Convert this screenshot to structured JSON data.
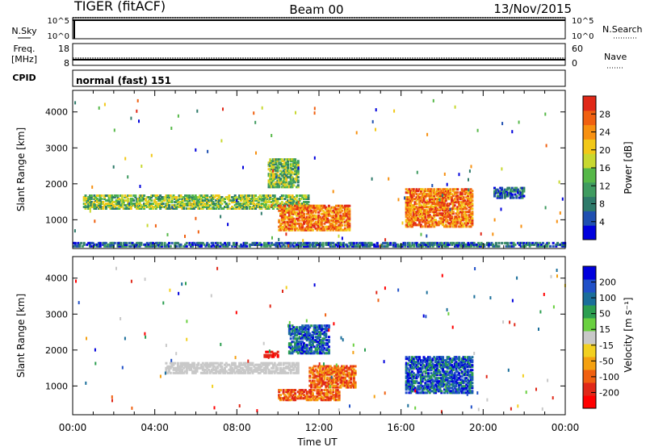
{
  "header": {
    "radar": "TIGER (fitACF)",
    "beam": "Beam 00",
    "date": "13/Nov/2015"
  },
  "top_panels": {
    "nsky": {
      "label": "N.Sky",
      "ticks": [
        "10^5",
        "10^0"
      ]
    },
    "nsearch": {
      "label": "N.Search",
      "ticks": [
        "10^5",
        "10^0"
      ]
    },
    "freq": {
      "label_line1": "Freq.",
      "label_line2": "[MHz]",
      "ticks": [
        "18",
        "8"
      ]
    },
    "nave": {
      "label": "Nave",
      "ticks": [
        "60",
        "0"
      ]
    },
    "cpid": {
      "label": "CPID",
      "mode_text": "normal (fast) 151"
    }
  },
  "colors": {
    "power_scale": [
      "#0000dd",
      "#1f4fb0",
      "#2e7a6a",
      "#3f9b60",
      "#56b848",
      "#c8d830",
      "#f2c818",
      "#f79010",
      "#f06010",
      "#e02818"
    ],
    "velocity_scale": [
      "#0000dd",
      "#2050c8",
      "#1a6e9a",
      "#2c9e50",
      "#6ad040",
      "#c8c8c8",
      "#f2d020",
      "#f4a010",
      "#f06010",
      "#e02818",
      "#ff0000"
    ]
  },
  "chart_data": [
    {
      "type": "heatmap",
      "name": "power",
      "ylabel": "Slant Range [km]",
      "yticks": [
        "4000",
        "3000",
        "2000",
        "1000"
      ],
      "ylim": [
        200,
        4600
      ],
      "xlim": [
        "00:00",
        "24:00"
      ],
      "colorbar": {
        "label": "Power [dB]",
        "ticks": [
          "28",
          "24",
          "20",
          "16",
          "12",
          "8",
          "4"
        ],
        "range": [
          0,
          32
        ]
      },
      "regions": [
        {
          "t_start": 0.5,
          "t_end": 11.5,
          "r_start": 1300,
          "r_end": 1700,
          "level": "mid"
        },
        {
          "t_start": 9.5,
          "t_end": 11.0,
          "r_start": 1900,
          "r_end": 2700,
          "level": "mid"
        },
        {
          "t_start": 10.0,
          "t_end": 13.5,
          "r_start": 700,
          "r_end": 1400,
          "level": "high"
        },
        {
          "t_start": 16.2,
          "t_end": 19.5,
          "r_start": 800,
          "r_end": 1900,
          "level": "high"
        },
        {
          "t_start": 20.5,
          "t_end": 22.0,
          "r_start": 1600,
          "r_end": 1900,
          "level": "low"
        },
        {
          "t_start": 0.0,
          "t_end": 24.0,
          "r_start": 250,
          "r_end": 400,
          "level": "low"
        }
      ]
    },
    {
      "type": "heatmap",
      "name": "velocity",
      "ylabel": "Slant Range [km]",
      "yticks": [
        "4000",
        "3000",
        "2000",
        "1000"
      ],
      "ylim": [
        200,
        4600
      ],
      "xlim": [
        "00:00",
        "24:00"
      ],
      "xticks": [
        "00:00",
        "04:00",
        "08:00",
        "12:00",
        "16:00",
        "20:00",
        "00:00"
      ],
      "xlabel": "Time UT",
      "colorbar": {
        "label": "Velocity [m s⁻¹]",
        "ticks": [
          "200",
          "100",
          "50",
          "15",
          "-15",
          "-50",
          "-100",
          "-200"
        ],
        "range": [
          -250,
          250
        ]
      },
      "regions": [
        {
          "t_start": 4.5,
          "t_end": 11.0,
          "r_start": 1350,
          "r_end": 1650,
          "level": "zero"
        },
        {
          "t_start": 11.5,
          "t_end": 13.8,
          "r_start": 950,
          "r_end": 1600,
          "level": "neg"
        },
        {
          "t_start": 10.5,
          "t_end": 12.5,
          "r_start": 1900,
          "r_end": 2700,
          "level": "pos"
        },
        {
          "t_start": 16.2,
          "t_end": 19.5,
          "r_start": 800,
          "r_end": 1850,
          "level": "pos"
        },
        {
          "t_start": 10.0,
          "t_end": 13.0,
          "r_start": 600,
          "r_end": 900,
          "level": "neg"
        },
        {
          "t_start": 9.3,
          "t_end": 10.0,
          "r_start": 1800,
          "r_end": 2000,
          "level": "negstrong"
        }
      ]
    }
  ]
}
